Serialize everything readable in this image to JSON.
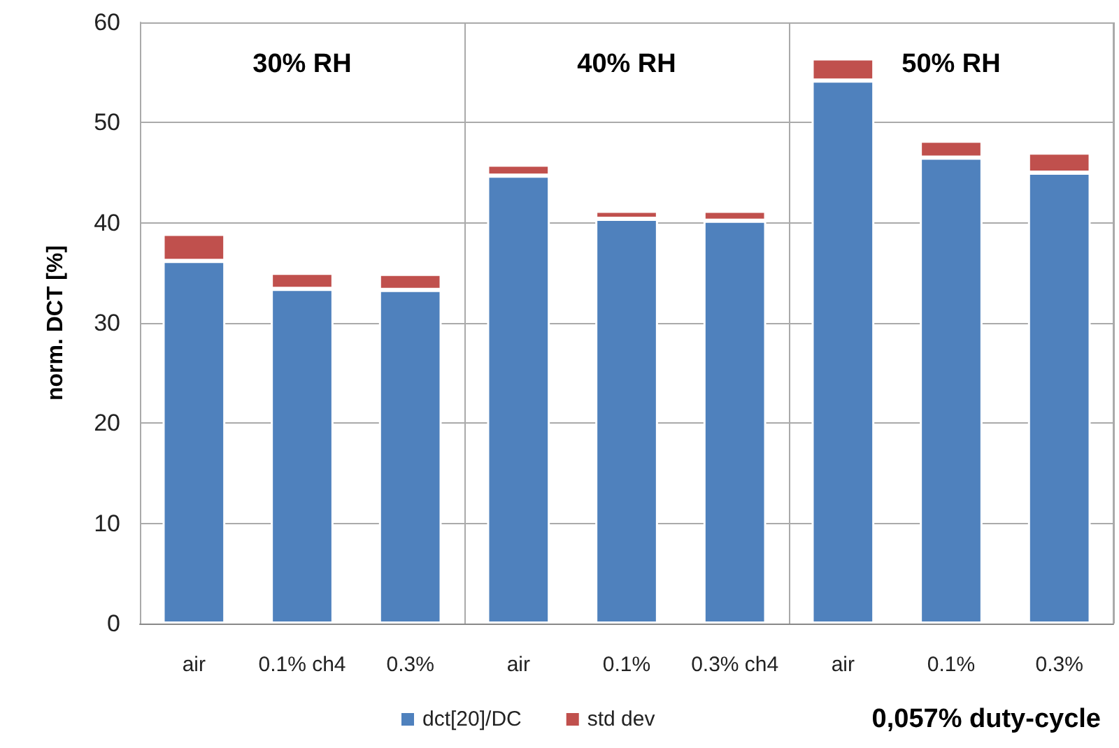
{
  "chart_data": {
    "type": "bar",
    "title": "0,057% duty-cycle",
    "ylabel": "norm. DCT [%]",
    "categories": [
      "air",
      "0.1% ch4",
      "0.3%",
      "air",
      "0.1%",
      "0.3% ch4",
      "air",
      "0.1%",
      "0.3%"
    ],
    "series": [
      {
        "name": "dct[20]/DC",
        "color": "#4f81bd",
        "values": [
          36.2,
          33.4,
          33.3,
          44.7,
          40.4,
          40.2,
          54.2,
          46.5,
          45.0
        ]
      },
      {
        "name": "std dev",
        "color": "#c0504d",
        "values": [
          2.7,
          1.6,
          1.6,
          1.1,
          0.8,
          1.0,
          2.2,
          1.7,
          2.0
        ]
      }
    ],
    "stacked": true,
    "ylim": [
      0,
      60
    ],
    "yticks": [
      0,
      10,
      20,
      30,
      40,
      50,
      60
    ],
    "grid": true,
    "legend": "bottom",
    "annotations": [
      "30% RH",
      "40% RH",
      "50% RH"
    ]
  }
}
